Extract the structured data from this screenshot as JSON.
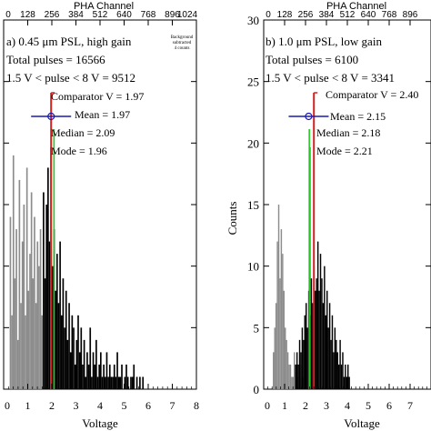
{
  "chart_data": [
    {
      "type": "bar",
      "panel_label": "a) 0.45 μm PSL, high gain",
      "annotations": [
        "Total pulses = 16566",
        "1.5 V < pulse < 8 V = 9512"
      ],
      "corner_note": [
        "Background",
        "subtracted",
        "4 counts"
      ],
      "top_axis_label": "PHA Channel",
      "top_ticks": [
        "0",
        "128",
        "256",
        "384",
        "512",
        "640",
        "768",
        "896",
        "1024"
      ],
      "xlabel": "Voltage",
      "ylabel": "",
      "xlim": [
        0,
        8
      ],
      "ylim": [
        0,
        30
      ],
      "x_ticks": [
        "0",
        "1",
        "2",
        "3",
        "4",
        "5",
        "6",
        "7",
        "8"
      ],
      "y_ticks": [],
      "lines": {
        "comparator": {
          "label": "Comparator V = 1.97",
          "value": 1.97,
          "color": "#d62020"
        },
        "mean": {
          "label": "Mean = 1.97",
          "value": 1.97,
          "color": "#1a1ab0"
        },
        "median": {
          "label": "Median = 2.09",
          "value": 2.09,
          "color": "#19d219"
        },
        "mode": {
          "label": "Mode = 1.96",
          "value": 1.96,
          "color": "#d21ad2"
        }
      },
      "bin_width": 0.0625,
      "gray_series": {
        "name": "",
        "x_start": 0.25,
        "values": [
          14,
          6,
          19,
          9,
          13,
          4,
          17,
          7,
          12,
          15,
          6,
          18,
          8,
          11,
          16,
          9,
          14,
          7,
          12,
          10,
          13,
          6
        ]
      },
      "black_series": {
        "name": "",
        "x_start": 1.625,
        "values": [
          16,
          9,
          15,
          18,
          12,
          14,
          10,
          13,
          8,
          11,
          7,
          12,
          6,
          9,
          5,
          8,
          4,
          7,
          3,
          6,
          5,
          2,
          4,
          6,
          3,
          5,
          2,
          4,
          1,
          3,
          2,
          5,
          1,
          3,
          2,
          4,
          1,
          2,
          3,
          1,
          2,
          1,
          3,
          1,
          2,
          1,
          1,
          2,
          1,
          3,
          1,
          1,
          2,
          0,
          1,
          2,
          1,
          0,
          1,
          1,
          2,
          0,
          1,
          0,
          1,
          0,
          1
        ]
      }
    },
    {
      "type": "bar",
      "panel_label": "b) 1.0 μm PSL, low gain",
      "annotations": [
        "Total pulses = 6100",
        "1.5 V < pulse < 8 V = 3341"
      ],
      "corner_note": [],
      "top_axis_label": "PHA Channel",
      "top_ticks": [
        "0",
        "128",
        "256",
        "384",
        "512",
        "640",
        "768",
        "896"
      ],
      "xlabel": "Voltage",
      "ylabel": "Counts",
      "xlim": [
        0,
        8
      ],
      "ylim": [
        0,
        30
      ],
      "x_ticks": [
        "0",
        "1",
        "2",
        "3",
        "4",
        "5",
        "6",
        "7"
      ],
      "y_ticks": [
        "0",
        "5",
        "10",
        "15",
        "20",
        "25",
        "30"
      ],
      "lines": {
        "comparator": {
          "label": "Comparator V = 2.40",
          "value": 2.4,
          "color": "#d62020"
        },
        "mean": {
          "label": "Mean = 2.15",
          "value": 2.15,
          "color": "#1a1ab0"
        },
        "median": {
          "label": "Median = 2.18",
          "value": 2.18,
          "color": "#19d219"
        },
        "mode": {
          "label": "Mode = 2.21",
          "value": 2.21,
          "color": "#d21ad2"
        }
      },
      "bin_width": 0.0625,
      "gray_series": {
        "name": "",
        "x_start": 0.4375,
        "values": [
          3,
          5,
          7,
          12,
          15,
          9,
          13,
          11,
          8,
          5,
          4,
          3,
          2,
          2,
          1,
          1,
          3,
          2,
          1,
          2,
          1,
          2,
          1,
          1
        ]
      },
      "black_series": {
        "name": "",
        "x_start": 1.5,
        "values": [
          2,
          3,
          2,
          4,
          3,
          5,
          4,
          6,
          7,
          5,
          8,
          6,
          9,
          7,
          10,
          8,
          9,
          12,
          8,
          11,
          9,
          7,
          10,
          6,
          8,
          5,
          7,
          4,
          6,
          3,
          5,
          4,
          3,
          2,
          4,
          2,
          3,
          1,
          2,
          1,
          2,
          1
        ]
      }
    }
  ]
}
